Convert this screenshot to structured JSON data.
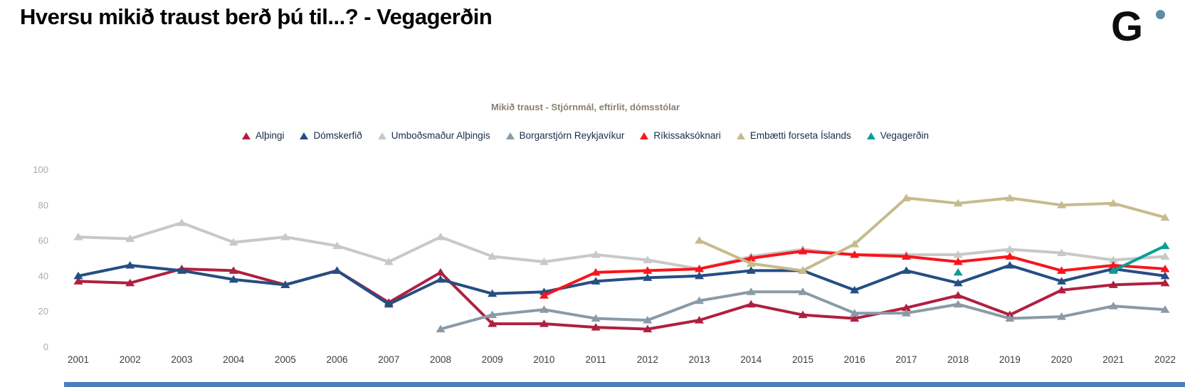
{
  "page": {
    "title": "Hversu mikið traust berð þú til...? - Vegagerðin",
    "logo_letter": "G"
  },
  "colors": {
    "accent_bar": "#4b7ebb",
    "logo_dot": "#5e8ca7",
    "y_tick_label": "#ababab",
    "x_tick_label": "#3d3d3d"
  },
  "chart_data": {
    "type": "line",
    "title": "Mikið traust - Stjórnmál, eftirlit, dómsstólar",
    "x": [
      2001,
      2002,
      2003,
      2004,
      2005,
      2006,
      2007,
      2008,
      2009,
      2010,
      2011,
      2012,
      2013,
      2014,
      2015,
      2016,
      2017,
      2018,
      2019,
      2020,
      2021,
      2022
    ],
    "xlabel": "",
    "ylabel": "",
    "ylim": [
      0,
      100
    ],
    "y_ticks": [
      0,
      20,
      40,
      60,
      80,
      100
    ],
    "grid": false,
    "legend_position": "top-center",
    "marker": "triangle-up",
    "series": [
      {
        "name": "Alþingi",
        "color": "#af2040",
        "values": [
          37,
          36,
          44,
          43,
          35,
          43,
          25,
          42,
          13,
          13,
          11,
          10,
          15,
          24,
          18,
          16,
          22,
          29,
          18,
          32,
          35,
          36
        ]
      },
      {
        "name": "Dómskerfið",
        "color": "#254e83",
        "values": [
          40,
          46,
          43,
          38,
          35,
          43,
          24,
          38,
          30,
          31,
          37,
          39,
          40,
          43,
          43,
          32,
          43,
          36,
          46,
          37,
          44,
          40
        ]
      },
      {
        "name": "Umboðsmaður Alþingis",
        "color": "#c8c8c8",
        "values": [
          62,
          61,
          70,
          59,
          62,
          57,
          48,
          62,
          51,
          48,
          52,
          49,
          44,
          51,
          55,
          52,
          52,
          52,
          55,
          53,
          49,
          51
        ]
      },
      {
        "name": "Borgarstjórn Reykjavíkur",
        "color": "#8a9aa7",
        "values": [
          null,
          null,
          null,
          null,
          null,
          null,
          null,
          10,
          18,
          21,
          16,
          15,
          26,
          31,
          31,
          19,
          19,
          24,
          16,
          17,
          23,
          21
        ]
      },
      {
        "name": "Ríkissaksóknari",
        "color": "#f8151c",
        "values": [
          null,
          null,
          null,
          null,
          null,
          null,
          null,
          null,
          null,
          29,
          42,
          43,
          44,
          50,
          54,
          52,
          51,
          48,
          51,
          43,
          46,
          44
        ]
      },
      {
        "name": "Embætti forseta Íslands",
        "color": "#c7ba8d",
        "values": [
          null,
          null,
          null,
          null,
          null,
          null,
          null,
          null,
          null,
          null,
          null,
          null,
          60,
          47,
          43,
          58,
          84,
          81,
          84,
          80,
          81,
          73
        ]
      },
      {
        "name": "Vegagerðin",
        "color": "#0a9e96",
        "values": [
          null,
          null,
          null,
          null,
          null,
          null,
          null,
          null,
          null,
          null,
          null,
          null,
          null,
          null,
          null,
          null,
          null,
          42,
          null,
          null,
          43,
          57
        ]
      }
    ]
  }
}
